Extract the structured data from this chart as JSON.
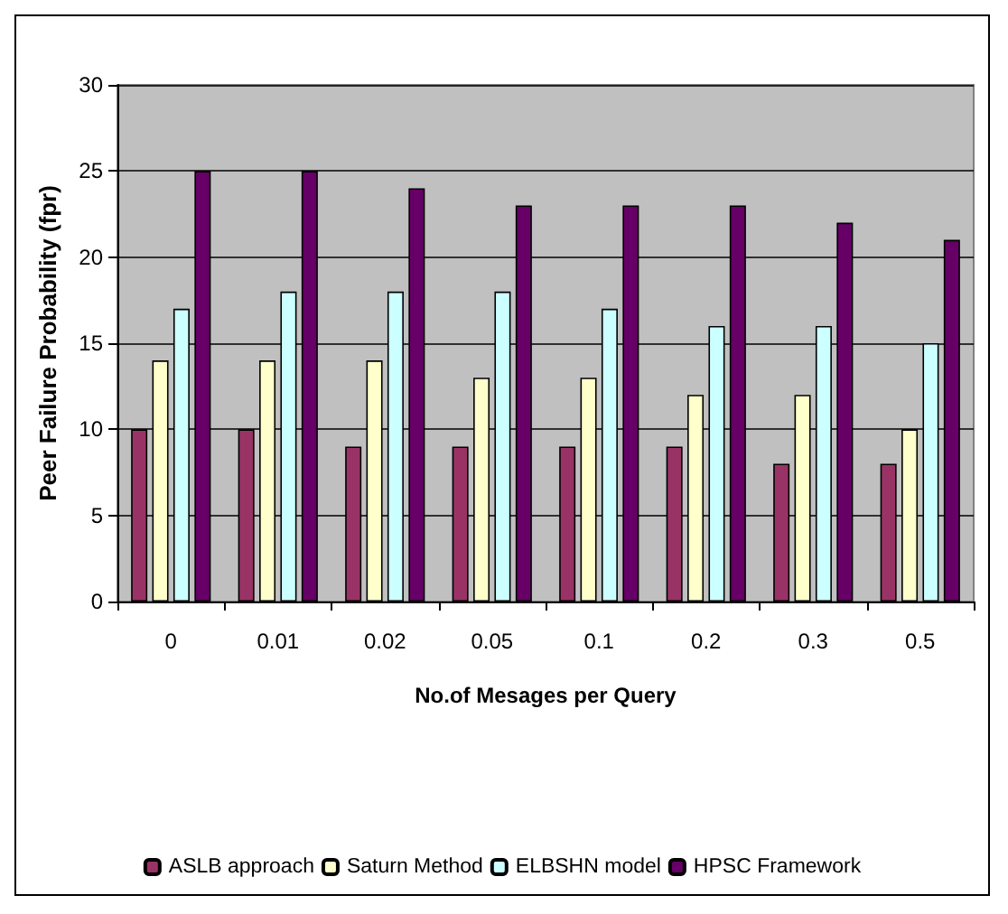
{
  "chart_data": {
    "type": "bar",
    "xlabel": "No.of Mesages per Query",
    "ylabel": "Peer Failure Probability (fpr)",
    "categories": [
      "0",
      "0.01",
      "0.02",
      "0.05",
      "0.1",
      "0.2",
      "0.3",
      "0.5"
    ],
    "series": [
      {
        "name": "ASLB approach",
        "color": "#993366",
        "values": [
          10,
          10,
          9,
          9,
          9,
          9,
          8,
          8
        ]
      },
      {
        "name": "Saturn Method",
        "color": "#ffffcc",
        "values": [
          14,
          14,
          14,
          13,
          13,
          12,
          12,
          10
        ]
      },
      {
        "name": "ELBSHN model",
        "color": "#ccffff",
        "values": [
          17,
          18,
          18,
          18,
          17,
          16,
          16,
          15
        ]
      },
      {
        "name": "HPSC Framework",
        "color": "#660066",
        "values": [
          25,
          25,
          24,
          23,
          23,
          23,
          22,
          21
        ]
      }
    ],
    "ylim": [
      0,
      30
    ],
    "yticks": [
      0,
      5,
      10,
      15,
      20,
      25,
      30
    ],
    "grid": "y",
    "legend": "bottom"
  }
}
